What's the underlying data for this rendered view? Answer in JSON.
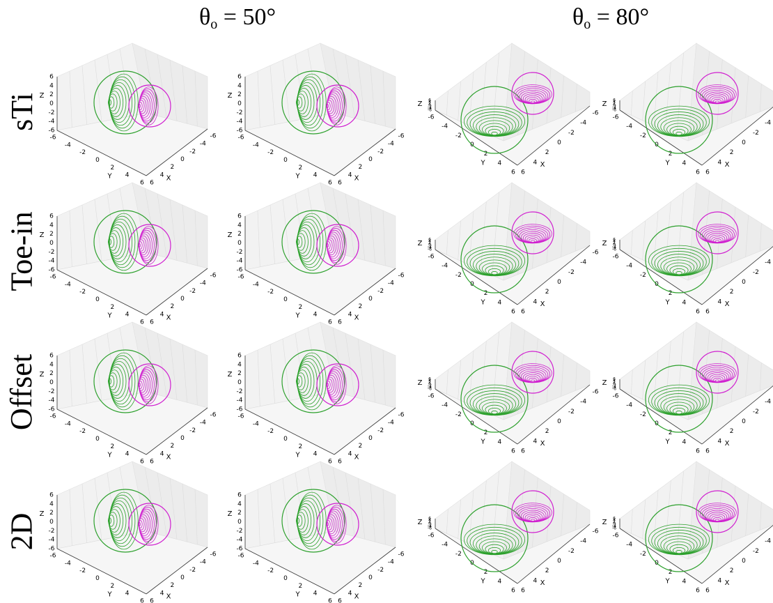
{
  "columns": [
    {
      "theta": "θ",
      "sub": "o",
      "rest": " = 50°"
    },
    {
      "theta": "θ",
      "sub": "o",
      "rest": " = 80°"
    }
  ],
  "rows": [
    "sTi",
    "Toe-in",
    "Offset",
    "2D"
  ],
  "chart_data": {
    "type": "3d-wireframe-spheres",
    "panel_count_per_row": 4,
    "panel_elevation_deg": [
      50,
      50,
      80,
      80
    ],
    "axes": {
      "xlabel": "X",
      "ylabel": "Y",
      "zlabel": "Z",
      "xticks": [
        -6,
        -4,
        -2,
        0,
        2,
        4,
        6
      ],
      "yticks": [
        -6,
        -4,
        -2,
        0,
        2,
        4,
        6
      ],
      "zticks": [
        -6,
        -4,
        -2,
        0,
        2,
        4,
        6
      ],
      "xlim": [
        -6,
        6
      ],
      "ylim": [
        -6,
        6
      ],
      "zlim": [
        -6,
        6
      ],
      "grid": true
    },
    "series": [
      {
        "color": "#2ca02c"
      },
      {
        "color": "#d020d0"
      }
    ]
  }
}
